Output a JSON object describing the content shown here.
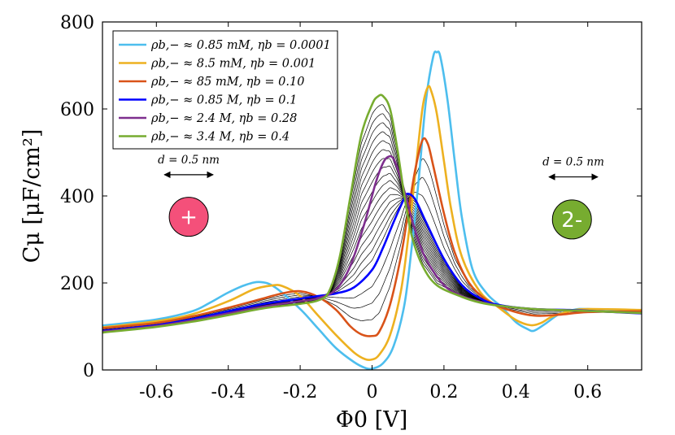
{
  "chart_data": {
    "type": "line",
    "xlabel": "Φ0 [V]",
    "ylabel": "Cμ [μF/cm²]",
    "xlim": [
      -0.75,
      0.75
    ],
    "ylim": [
      0,
      800
    ],
    "xticks": [
      -0.6,
      -0.4,
      -0.2,
      0,
      0.2,
      0.4,
      0.6
    ],
    "xtick_labels": [
      "-0.6",
      "-0.4",
      "-0.2",
      "0",
      "0.2",
      "0.4",
      "0.6"
    ],
    "yticks": [
      0,
      200,
      400,
      600,
      800
    ],
    "ytick_labels": [
      "0",
      "200",
      "400",
      "600",
      "800"
    ],
    "grid": false,
    "legend_position": "top-left",
    "series": [
      {
        "name": "ρb,− ≈ 0.85 mM, ηb = 0.0001",
        "color": "#4DBEEE",
        "in_legend": true,
        "points": [
          [
            -0.75,
            102
          ],
          [
            -0.6,
            116
          ],
          [
            -0.5,
            135
          ],
          [
            -0.45,
            155
          ],
          [
            -0.4,
            178
          ],
          [
            -0.35,
            196
          ],
          [
            -0.31,
            202
          ],
          [
            -0.27,
            190
          ],
          [
            -0.2,
            140
          ],
          [
            -0.15,
            95
          ],
          [
            -0.1,
            50
          ],
          [
            -0.05,
            18
          ],
          [
            -0.02,
            5
          ],
          [
            0.0,
            3
          ],
          [
            0.03,
            15
          ],
          [
            0.06,
            55
          ],
          [
            0.09,
            150
          ],
          [
            0.11,
            280
          ],
          [
            0.13,
            440
          ],
          [
            0.15,
            620
          ],
          [
            0.17,
            720
          ],
          [
            0.18,
            730
          ],
          [
            0.19,
            720
          ],
          [
            0.21,
            620
          ],
          [
            0.23,
            480
          ],
          [
            0.25,
            350
          ],
          [
            0.28,
            230
          ],
          [
            0.32,
            175
          ],
          [
            0.36,
            145
          ],
          [
            0.4,
            110
          ],
          [
            0.43,
            95
          ],
          [
            0.45,
            90
          ],
          [
            0.48,
            105
          ],
          [
            0.52,
            128
          ],
          [
            0.56,
            138
          ],
          [
            0.6,
            140
          ],
          [
            0.75,
            132
          ]
        ]
      },
      {
        "name": "ρb,− ≈ 8.5 mM, ηb = 0.001",
        "color": "#EDB120",
        "in_legend": true,
        "points": [
          [
            -0.75,
            98
          ],
          [
            -0.6,
            112
          ],
          [
            -0.5,
            128
          ],
          [
            -0.4,
            158
          ],
          [
            -0.33,
            185
          ],
          [
            -0.28,
            194
          ],
          [
            -0.25,
            193
          ],
          [
            -0.2,
            170
          ],
          [
            -0.15,
            125
          ],
          [
            -0.1,
            80
          ],
          [
            -0.05,
            40
          ],
          [
            -0.02,
            25
          ],
          [
            0.0,
            24
          ],
          [
            0.02,
            35
          ],
          [
            0.05,
            80
          ],
          [
            0.08,
            180
          ],
          [
            0.1,
            300
          ],
          [
            0.12,
            450
          ],
          [
            0.14,
            600
          ],
          [
            0.155,
            650
          ],
          [
            0.165,
            640
          ],
          [
            0.18,
            590
          ],
          [
            0.2,
            480
          ],
          [
            0.22,
            370
          ],
          [
            0.25,
            260
          ],
          [
            0.3,
            180
          ],
          [
            0.35,
            145
          ],
          [
            0.4,
            115
          ],
          [
            0.44,
            103
          ],
          [
            0.47,
            108
          ],
          [
            0.5,
            122
          ],
          [
            0.55,
            135
          ],
          [
            0.6,
            140
          ],
          [
            0.75,
            138
          ]
        ]
      },
      {
        "name": "ρb,− ≈ 85 mM, ηb = 0.10",
        "color": "#D95319",
        "in_legend": true,
        "points": [
          [
            -0.75,
            96
          ],
          [
            -0.6,
            108
          ],
          [
            -0.5,
            123
          ],
          [
            -0.4,
            143
          ],
          [
            -0.3,
            165
          ],
          [
            -0.25,
            176
          ],
          [
            -0.2,
            181
          ],
          [
            -0.15,
            168
          ],
          [
            -0.1,
            138
          ],
          [
            -0.06,
            100
          ],
          [
            -0.03,
            82
          ],
          [
            0.0,
            78
          ],
          [
            0.02,
            88
          ],
          [
            0.05,
            150
          ],
          [
            0.08,
            260
          ],
          [
            0.1,
            360
          ],
          [
            0.12,
            460
          ],
          [
            0.14,
            528
          ],
          [
            0.155,
            520
          ],
          [
            0.17,
            470
          ],
          [
            0.2,
            360
          ],
          [
            0.23,
            270
          ],
          [
            0.27,
            200
          ],
          [
            0.32,
            160
          ],
          [
            0.38,
            138
          ],
          [
            0.45,
            125
          ],
          [
            0.52,
            127
          ],
          [
            0.6,
            133
          ],
          [
            0.75,
            135
          ]
        ]
      },
      {
        "name": "ρb,− ≈ 0.85 M, ηb = 0.1",
        "color": "#0000FF",
        "in_legend": true,
        "points": [
          [
            -0.75,
            90
          ],
          [
            -0.6,
            103
          ],
          [
            -0.5,
            117
          ],
          [
            -0.4,
            135
          ],
          [
            -0.3,
            152
          ],
          [
            -0.2,
            164
          ],
          [
            -0.15,
            170
          ],
          [
            -0.1,
            176
          ],
          [
            -0.05,
            190
          ],
          [
            0.0,
            230
          ],
          [
            0.03,
            280
          ],
          [
            0.06,
            340
          ],
          [
            0.09,
            395
          ],
          [
            0.1,
            405
          ],
          [
            0.12,
            392
          ],
          [
            0.15,
            340
          ],
          [
            0.2,
            255
          ],
          [
            0.25,
            195
          ],
          [
            0.3,
            165
          ],
          [
            0.35,
            150
          ],
          [
            0.45,
            140
          ],
          [
            0.55,
            138
          ],
          [
            0.65,
            134
          ],
          [
            0.75,
            130
          ]
        ]
      },
      {
        "name": "ρb,− ≈ 2.4 M, ηb = 0.28",
        "color": "#7E2F8E",
        "in_legend": true,
        "points": [
          [
            -0.75,
            88
          ],
          [
            -0.6,
            101
          ],
          [
            -0.5,
            114
          ],
          [
            -0.4,
            130
          ],
          [
            -0.3,
            146
          ],
          [
            -0.2,
            158
          ],
          [
            -0.15,
            165
          ],
          [
            -0.1,
            185
          ],
          [
            -0.06,
            240
          ],
          [
            -0.02,
            340
          ],
          [
            0.01,
            430
          ],
          [
            0.03,
            475
          ],
          [
            0.045,
            490
          ],
          [
            0.06,
            485
          ],
          [
            0.08,
            440
          ],
          [
            0.1,
            380
          ],
          [
            0.12,
            320
          ],
          [
            0.15,
            255
          ],
          [
            0.2,
            195
          ],
          [
            0.25,
            170
          ],
          [
            0.3,
            157
          ],
          [
            0.35,
            148
          ],
          [
            0.45,
            140
          ],
          [
            0.55,
            137
          ],
          [
            0.65,
            134
          ],
          [
            0.75,
            131
          ]
        ]
      },
      {
        "name": "ρb,− ≈ 3.4 M, ηb = 0.4",
        "color": "#77AC30",
        "in_legend": true,
        "points": [
          [
            -0.75,
            86
          ],
          [
            -0.6,
            99
          ],
          [
            -0.5,
            111
          ],
          [
            -0.4,
            126
          ],
          [
            -0.3,
            142
          ],
          [
            -0.2,
            152
          ],
          [
            -0.15,
            160
          ],
          [
            -0.12,
            180
          ],
          [
            -0.09,
            260
          ],
          [
            -0.06,
            400
          ],
          [
            -0.03,
            540
          ],
          [
            0.0,
            610
          ],
          [
            0.015,
            628
          ],
          [
            0.03,
            630
          ],
          [
            0.05,
            600
          ],
          [
            0.07,
            510
          ],
          [
            0.09,
            400
          ],
          [
            0.11,
            310
          ],
          [
            0.14,
            240
          ],
          [
            0.18,
            195
          ],
          [
            0.25,
            168
          ],
          [
            0.3,
            155
          ],
          [
            0.35,
            148
          ],
          [
            0.45,
            140
          ],
          [
            0.55,
            137
          ],
          [
            0.65,
            134
          ],
          [
            0.75,
            131
          ]
        ]
      }
    ],
    "intermediate_lines": {
      "color": "#000000",
      "count": 16
    },
    "annotations": [
      {
        "text": "d = 0.5 nm",
        "x": -0.51,
        "y": 460
      },
      {
        "text": "d = 0.5 nm",
        "x": 0.56,
        "y": 455
      }
    ],
    "ions": [
      {
        "label": "+",
        "color": "#F4507A",
        "x": -0.51,
        "y": 352
      },
      {
        "label": "2-",
        "color": "#77AC30",
        "x": 0.556,
        "y": 346
      }
    ]
  }
}
